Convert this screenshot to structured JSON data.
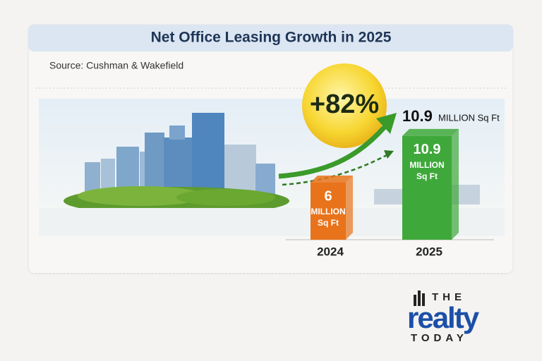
{
  "chart_data": {
    "type": "bar",
    "title": "Net Office Leasing Growth in 2025",
    "subtitle": "Source: Cushman & Wakefield",
    "categories": [
      "2024",
      "2025"
    ],
    "values": [
      6,
      10.9
    ],
    "colors": [
      "#e8731a",
      "#3fa83b"
    ],
    "unit_lines": [
      "MILLION",
      "Sq Ft"
    ],
    "callout_unit": "MILLION Sq Ft",
    "growth_label": "+82%"
  },
  "brand": {
    "top": "THE",
    "main": "realty",
    "bottom": "TODAY"
  }
}
